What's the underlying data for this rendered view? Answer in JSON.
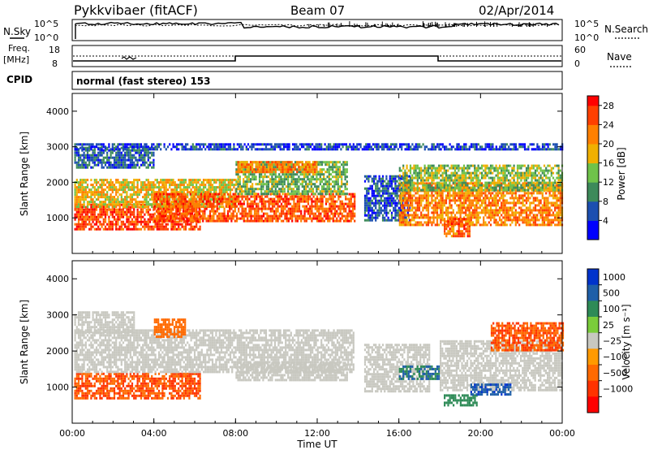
{
  "header": {
    "station": "Pykkvibaer (fitACF)",
    "beam": "Beam 07",
    "date": "02/Apr/2014"
  },
  "status_panels": {
    "nsky": {
      "label": "N.Sky",
      "ticks": [
        "10^5",
        "10^0"
      ],
      "right_ticks": [
        "10^5",
        "10^0"
      ],
      "right_label": "N.Search"
    },
    "freq": {
      "label_line1": "Freq.",
      "label_line2": "[MHz]",
      "ticks": [
        "18",
        "8"
      ],
      "right_ticks": [
        "60",
        "0"
      ],
      "right_label": "Nave"
    },
    "cpid": {
      "label": "CPID",
      "value": "normal (fast stereo) 153"
    }
  },
  "colors": {
    "power_scale": [
      "#0000ff",
      "#1c4fb0",
      "#3d8a5a",
      "#6fc34a",
      "#f0b000",
      "#ff8000",
      "#ff4000",
      "#ff0000"
    ],
    "velocity_scale": [
      "#0033cc",
      "#1f5fa8",
      "#2e8b57",
      "#7acc3a",
      "#c8c8c0",
      "#ff9a00",
      "#ff6a00",
      "#ff3300",
      "#ff0000"
    ]
  },
  "chart_data": [
    {
      "type": "heatmap",
      "panel": "power",
      "ylabel": "Slant Range [km]",
      "xlabel": "",
      "x_ticks": [
        "00:00",
        "04:00",
        "08:00",
        "12:00",
        "16:00",
        "20:00",
        "00:00"
      ],
      "y_ticks": [
        1000,
        2000,
        3000,
        4000
      ],
      "xlim": [
        0,
        24
      ],
      "ylim": [
        0,
        4500
      ],
      "colorbar": {
        "label": "Power [dB]",
        "ticks": [
          "4",
          "8",
          "12",
          "16",
          "20",
          "24",
          "28"
        ],
        "range": [
          0,
          30
        ]
      },
      "bands": [
        {
          "t_start": 0.1,
          "t_end": 6.3,
          "r_low": 700,
          "r_high": 1400,
          "value": 26
        },
        {
          "t_start": 0.1,
          "t_end": 8.0,
          "r_low": 1300,
          "r_high": 2100,
          "value": 18
        },
        {
          "t_start": 4.0,
          "t_end": 13.8,
          "r_low": 900,
          "r_high": 1700,
          "value": 25
        },
        {
          "t_start": 8.0,
          "t_end": 13.5,
          "r_low": 1700,
          "r_high": 2600,
          "value": 13
        },
        {
          "t_start": 8.0,
          "t_end": 12.0,
          "r_low": 2300,
          "r_high": 2600,
          "value": 22
        },
        {
          "t_start": 0.1,
          "t_end": 4.0,
          "r_low": 2400,
          "r_high": 3000,
          "value": 7
        },
        {
          "t_start": 14.3,
          "t_end": 16.5,
          "r_low": 900,
          "r_high": 2200,
          "value": 6
        },
        {
          "t_start": 16.0,
          "t_end": 24.0,
          "r_low": 800,
          "r_high": 2000,
          "value": 22
        },
        {
          "t_start": 16.0,
          "t_end": 24.0,
          "r_low": 1800,
          "r_high": 2500,
          "value": 14
        },
        {
          "t_start": 18.2,
          "t_end": 19.5,
          "r_low": 500,
          "r_high": 1000,
          "value": 24
        },
        {
          "t_start": 0.1,
          "t_end": 24.0,
          "r_low": 2900,
          "r_high": 3100,
          "value": 5
        }
      ]
    },
    {
      "type": "heatmap",
      "panel": "velocity",
      "ylabel": "Slant Range [km]",
      "xlabel": "Time UT",
      "x_ticks": [
        "00:00",
        "04:00",
        "08:00",
        "12:00",
        "16:00",
        "20:00",
        "00:00"
      ],
      "y_ticks": [
        1000,
        2000,
        3000,
        4000
      ],
      "xlim": [
        0,
        24
      ],
      "ylim": [
        0,
        4500
      ],
      "colorbar": {
        "label": "Velocity [m s⁻¹]",
        "ticks": [
          "1000",
          "500",
          "100",
          "25",
          "−25",
          "−100",
          "−500",
          "−1000"
        ]
      },
      "bands": [
        {
          "t_start": 0.1,
          "t_end": 6.3,
          "r_low": 700,
          "r_high": 1400,
          "value": -300
        },
        {
          "t_start": 0.1,
          "t_end": 13.8,
          "r_low": 1400,
          "r_high": 2600,
          "value": 0
        },
        {
          "t_start": 8.0,
          "t_end": 13.5,
          "r_low": 1200,
          "r_high": 1700,
          "value": 0
        },
        {
          "t_start": 0.1,
          "t_end": 3.0,
          "r_low": 2500,
          "r_high": 3100,
          "value": 0
        },
        {
          "t_start": 4.0,
          "t_end": 5.5,
          "r_low": 2400,
          "r_high": 2900,
          "value": -200
        },
        {
          "t_start": 14.3,
          "t_end": 17.5,
          "r_low": 900,
          "r_high": 2200,
          "value": 0
        },
        {
          "t_start": 16.0,
          "t_end": 18.0,
          "r_low": 1200,
          "r_high": 1600,
          "value": 300
        },
        {
          "t_start": 18.0,
          "t_end": 24.0,
          "r_low": 900,
          "r_high": 2300,
          "value": 0
        },
        {
          "t_start": 18.2,
          "t_end": 19.8,
          "r_low": 500,
          "r_high": 800,
          "value": 200
        },
        {
          "t_start": 19.5,
          "t_end": 21.5,
          "r_low": 800,
          "r_high": 1100,
          "value": 600
        },
        {
          "t_start": 20.5,
          "t_end": 24.0,
          "r_low": 2000,
          "r_high": 2800,
          "value": -300
        }
      ]
    }
  ]
}
